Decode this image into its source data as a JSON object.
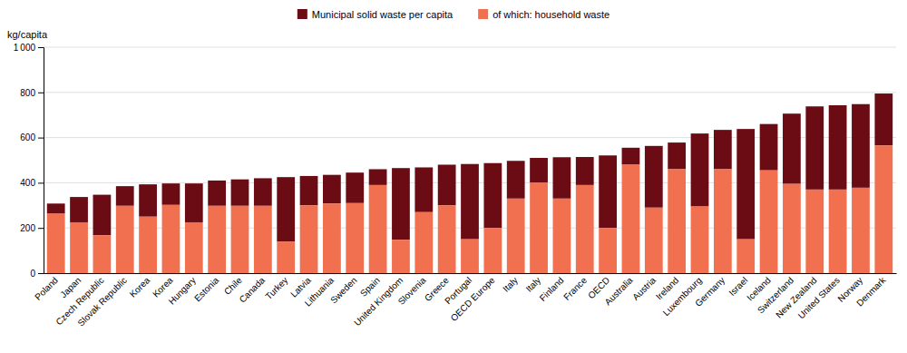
{
  "chart_data": {
    "type": "bar",
    "stacked": true,
    "categories": [
      "Poland",
      "Japan",
      "Czech Republic",
      "Slovak Republic",
      "Korea",
      "Korea",
      "Hungary",
      "Estonia",
      "Chile",
      "Canada",
      "Turkey",
      "Latvia",
      "Lithuania",
      "Sweden",
      "Spain",
      "United Kingdom",
      "Slovenia",
      "Greece",
      "Portugal",
      "OECD Europe",
      "Italy",
      "Italy",
      "Finland",
      "France",
      "OECD",
      "Australia",
      "Austria",
      "Ireland",
      "Luxembourg",
      "Germany",
      "Israel",
      "Iceland",
      "Switzerland",
      "New Zealand",
      "United States",
      "Norway",
      "Denmark"
    ],
    "series": [
      {
        "name": "Municipal solid waste per capita",
        "color": "#6b0c15",
        "values": [
          45,
          112,
          179,
          87,
          143,
          95,
          172,
          112,
          117,
          122,
          285,
          130,
          127,
          135,
          70,
          317,
          198,
          180,
          333,
          287,
          167,
          110,
          183,
          124,
          321,
          75,
          273,
          118,
          323,
          174,
          488,
          205,
          311,
          368,
          373,
          370,
          230
        ]
      },
      {
        "name": "of which: household waste",
        "color": "#f07050",
        "values": [
          263,
          225,
          168,
          298,
          250,
          302,
          225,
          298,
          298,
          298,
          140,
          300,
          308,
          310,
          390,
          148,
          270,
          300,
          150,
          200,
          330,
          400,
          330,
          390,
          200,
          480,
          290,
          460,
          295,
          460,
          150,
          455,
          395,
          370,
          370,
          378,
          565
        ]
      }
    ],
    "y_label": "kg/capita",
    "ylim": [
      0,
      1000
    ],
    "yticks": [
      0,
      200,
      400,
      600,
      800,
      {
        "value": 1000,
        "label": "1 000"
      }
    ],
    "grid": true,
    "legend": "top"
  }
}
